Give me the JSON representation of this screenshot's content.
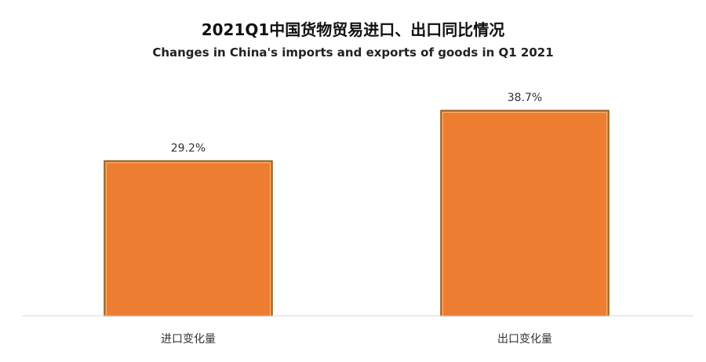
{
  "chart_data": {
    "type": "bar",
    "title": "2021Q1中国货物贸易进口、出口同比情况",
    "subtitle": "Changes in China's imports and exports of goods in Q1 2021",
    "categories": [
      "进口变化量",
      "出口变化量"
    ],
    "values": [
      29.2,
      38.7
    ],
    "value_labels": [
      "29.2%",
      "38.7%"
    ],
    "unit": "%",
    "ylim": [
      0,
      42.5
    ],
    "grid": false,
    "legend": "none",
    "colors": {
      "bar_fill": "#ED7D31",
      "bar_border": "#8B5A1C",
      "bar_inner_highlight": "#F6B26B",
      "axis": "#D9D9D9"
    }
  }
}
